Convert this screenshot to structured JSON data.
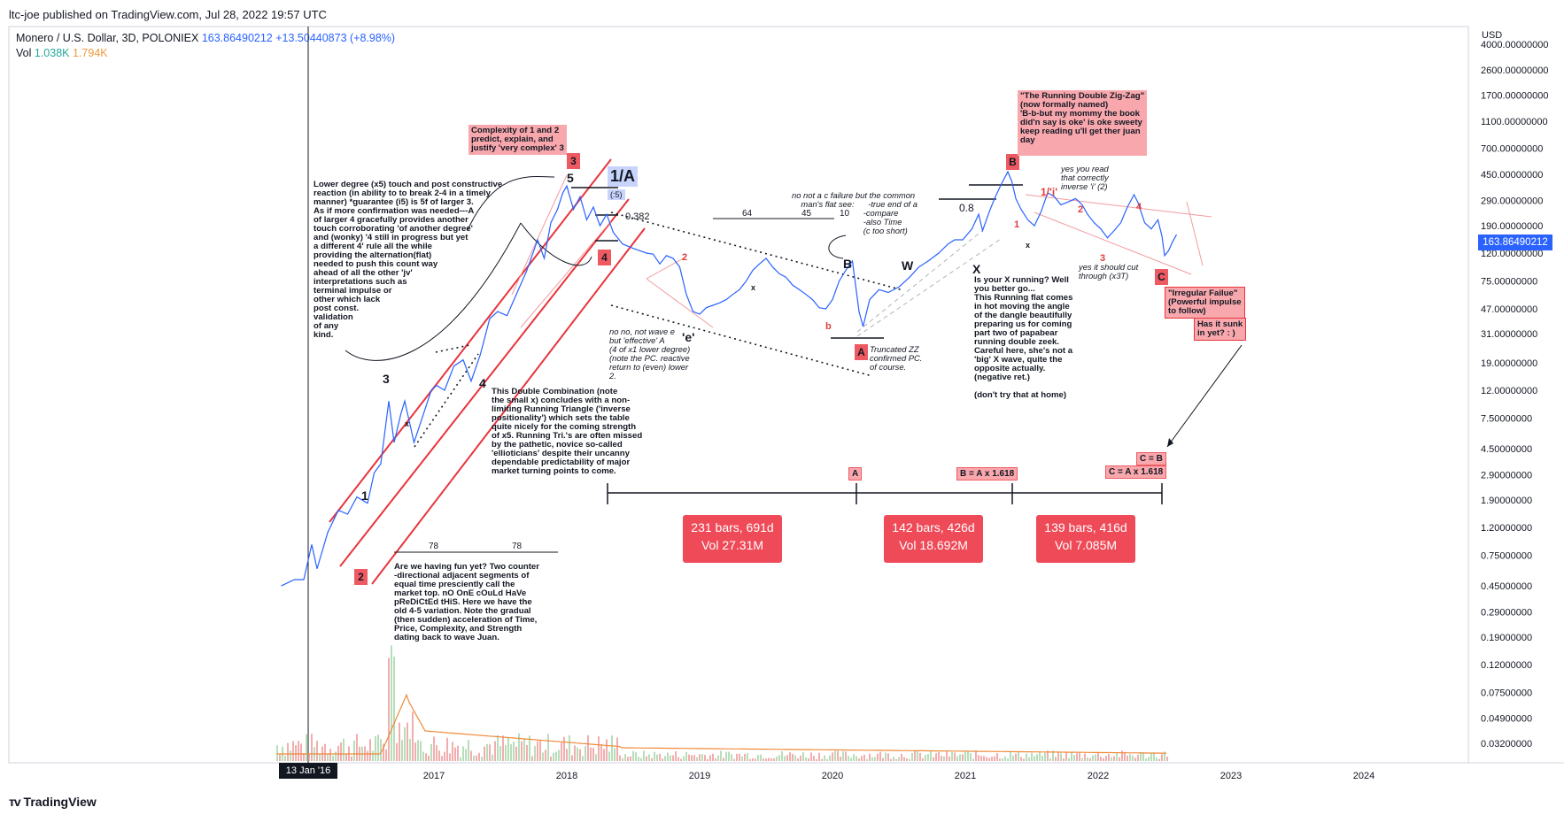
{
  "header": {
    "published": "ltc-joe published on TradingView.com, Jul 28, 2022 19:57 UTC",
    "symbol": "Monero / U.S. Dollar, 3D, POLONIEX",
    "last": "163.86490212",
    "change": "+13.50440873 (+8.98%)",
    "vol_label": "Vol",
    "vol_a": "1.038K",
    "vol_b": "1.794K"
  },
  "axis": {
    "currency": "USD",
    "current_price": "163.86490212",
    "crosshair_date": "13 Jan '16"
  },
  "footer": {
    "brand": "TradingView"
  },
  "colors": {
    "price_line": "#2962ff",
    "annotation_red": "#e8343c",
    "label_pink": "#f8a8ad",
    "volume_up": "#a5d6a7",
    "volume_down": "#ef9a9a",
    "volume_ma": "#ef8a3a"
  },
  "chart_data": {
    "type": "line",
    "scale": "log",
    "ylim": [
      0.032,
      4000
    ],
    "y_ticks": [
      "4000.00000000",
      "2600.00000000",
      "1700.00000000",
      "1100.00000000",
      "700.00000000",
      "450.00000000",
      "290.00000000",
      "190.00000000",
      "120.00000000",
      "75.00000000",
      "47.00000000",
      "31.00000000",
      "19.00000000",
      "12.00000000",
      "7.50000000",
      "4.50000000",
      "2.90000000",
      "1.90000000",
      "1.20000000",
      "0.75000000",
      "0.45000000",
      "0.29000000",
      "0.19000000",
      "0.12000000",
      "0.07500000",
      "0.04900000",
      "0.03200000"
    ],
    "y_tick_values": [
      4000,
      2600,
      1700,
      1100,
      700,
      450,
      290,
      190,
      120,
      75,
      47,
      31,
      19,
      12,
      7.5,
      4.5,
      2.9,
      1.9,
      1.2,
      0.75,
      0.45,
      0.29,
      0.19,
      0.12,
      0.075,
      0.049,
      0.032
    ],
    "x_ticks": [
      "2017",
      "2018",
      "2019",
      "2020",
      "2021",
      "2022",
      "2023",
      "2024"
    ],
    "x_tick_years": [
      2017,
      2018,
      2019,
      2020,
      2021,
      2022,
      2023,
      2024
    ],
    "series": [
      {
        "values": [
          [
            2015.85,
            0.45
          ],
          [
            2015.95,
            0.5
          ],
          [
            2016.02,
            0.5
          ],
          [
            2016.08,
            0.9
          ],
          [
            2016.12,
            0.6
          ],
          [
            2016.2,
            1.1
          ],
          [
            2016.28,
            1.6
          ],
          [
            2016.35,
            1.5
          ],
          [
            2016.42,
            2.0
          ],
          [
            2016.5,
            1.8
          ],
          [
            2016.55,
            3.0
          ],
          [
            2016.6,
            3.5
          ],
          [
            2016.66,
            10.0
          ],
          [
            2016.7,
            5.0
          ],
          [
            2016.75,
            8.0
          ],
          [
            2016.78,
            10.0
          ],
          [
            2016.85,
            5.0
          ],
          [
            2016.92,
            8.0
          ],
          [
            2016.98,
            12.0
          ],
          [
            2017.02,
            13.0
          ],
          [
            2017.08,
            12.0
          ],
          [
            2017.15,
            18.0
          ],
          [
            2017.22,
            20.0
          ],
          [
            2017.28,
            14.0
          ],
          [
            2017.35,
            22.0
          ],
          [
            2017.42,
            40.0
          ],
          [
            2017.48,
            45.0
          ],
          [
            2017.55,
            42.0
          ],
          [
            2017.62,
            60.0
          ],
          [
            2017.7,
            90.0
          ],
          [
            2017.78,
            150.0
          ],
          [
            2017.83,
            110.0
          ],
          [
            2017.88,
            200.0
          ],
          [
            2017.93,
            250.0
          ],
          [
            2017.97,
            330.0
          ],
          [
            2018.0,
            370.0
          ],
          [
            2018.05,
            250.0
          ],
          [
            2018.1,
            310.0
          ],
          [
            2018.15,
            210.0
          ],
          [
            2018.2,
            260.0
          ],
          [
            2018.25,
            190.0
          ],
          [
            2018.3,
            230.0
          ],
          [
            2018.35,
            170.0
          ],
          [
            2018.42,
            140.0
          ],
          [
            2018.5,
            130.0
          ],
          [
            2018.55,
            125.0
          ],
          [
            2018.6,
            120.0
          ],
          [
            2018.65,
            118.0
          ],
          [
            2018.7,
            100.0
          ],
          [
            2018.75,
            115.0
          ],
          [
            2018.8,
            110.0
          ],
          [
            2018.85,
            95.0
          ],
          [
            2018.9,
            60.0
          ],
          [
            2018.95,
            45.0
          ],
          [
            2019.0,
            43.0
          ],
          [
            2019.05,
            48.0
          ],
          [
            2019.1,
            50.0
          ],
          [
            2019.15,
            52.0
          ],
          [
            2019.2,
            55.0
          ],
          [
            2019.25,
            60.0
          ],
          [
            2019.3,
            65.0
          ],
          [
            2019.35,
            75.0
          ],
          [
            2019.4,
            90.0
          ],
          [
            2019.45,
            100.0
          ],
          [
            2019.5,
            110.0
          ],
          [
            2019.55,
            95.0
          ],
          [
            2019.6,
            85.0
          ],
          [
            2019.65,
            80.0
          ],
          [
            2019.7,
            70.0
          ],
          [
            2019.75,
            65.0
          ],
          [
            2019.8,
            60.0
          ],
          [
            2019.85,
            55.0
          ],
          [
            2019.9,
            48.0
          ],
          [
            2019.95,
            47.0
          ],
          [
            2020.0,
            55.0
          ],
          [
            2020.05,
            75.0
          ],
          [
            2020.1,
            90.0
          ],
          [
            2020.15,
            105.0
          ],
          [
            2020.2,
            45.0
          ],
          [
            2020.23,
            35.0
          ],
          [
            2020.28,
            55.0
          ],
          [
            2020.35,
            65.0
          ],
          [
            2020.42,
            62.0
          ],
          [
            2020.5,
            68.0
          ],
          [
            2020.58,
            80.0
          ],
          [
            2020.65,
            95.0
          ],
          [
            2020.72,
            105.0
          ],
          [
            2020.8,
            120.0
          ],
          [
            2020.87,
            140.0
          ],
          [
            2020.92,
            150.0
          ],
          [
            2020.98,
            150.0
          ],
          [
            2021.05,
            180.0
          ],
          [
            2021.1,
            230.0
          ],
          [
            2021.13,
            175.0
          ],
          [
            2021.18,
            240.0
          ],
          [
            2021.22,
            300.0
          ],
          [
            2021.27,
            380.0
          ],
          [
            2021.32,
            470.0
          ],
          [
            2021.35,
            400.0
          ],
          [
            2021.38,
            300.0
          ],
          [
            2021.42,
            250.0
          ],
          [
            2021.47,
            210.0
          ],
          [
            2021.52,
            190.0
          ],
          [
            2021.57,
            240.0
          ],
          [
            2021.62,
            330.0
          ],
          [
            2021.67,
            310.0
          ],
          [
            2021.72,
            270.0
          ],
          [
            2021.78,
            285.0
          ],
          [
            2021.83,
            300.0
          ],
          [
            2021.88,
            270.0
          ],
          [
            2021.92,
            230.0
          ],
          [
            2021.97,
            200.0
          ],
          [
            2022.02,
            180.0
          ],
          [
            2022.07,
            155.0
          ],
          [
            2022.12,
            175.0
          ],
          [
            2022.17,
            200.0
          ],
          [
            2022.22,
            260.0
          ],
          [
            2022.27,
            320.0
          ],
          [
            2022.3,
            280.0
          ],
          [
            2022.35,
            200.0
          ],
          [
            2022.4,
            180.0
          ],
          [
            2022.45,
            210.0
          ],
          [
            2022.48,
            160.0
          ],
          [
            2022.5,
            115.0
          ],
          [
            2022.53,
            125.0
          ],
          [
            2022.56,
            145.0
          ],
          [
            2022.59,
            163.86
          ]
        ]
      }
    ],
    "annotations": {
      "wave_labels": [
        "1",
        "2",
        "3",
        "4",
        "5",
        "1/A",
        "(:5)",
        "0.382",
        "'e'",
        "B",
        "W",
        "X",
        "0.8",
        "2",
        "b",
        "x",
        "1/'i'",
        "1",
        "2",
        "3",
        "4",
        "x",
        "x",
        "A",
        "B",
        "C"
      ],
      "fib_labels": [
        "A",
        "B = A x 1.618",
        "C = B",
        "C = A x 1.618"
      ],
      "time_counts": [
        "64",
        "45",
        "10",
        "78",
        "78"
      ],
      "segments": [
        {
          "label": "231 bars, 691d",
          "volume": "Vol 27.31M"
        },
        {
          "label": "142 bars, 426d",
          "volume": "Vol 18.692M"
        },
        {
          "label": "139 bars, 416d",
          "volume": "Vol 7.085M"
        }
      ],
      "notes": {
        "complexity": "Complexity of 1 and 2\npredict, explain, and\njustify 'very complex' 3",
        "lower_degree": "Lower degree (x5) touch and post constructive\nreaction (in ability to to break 2-4 in a timely\nmanner) *guarantee (i5) is 5f of larger 3.\nAs if more confirmation was needed---A\nof larger 4 gracefully provides another\ntouch corroborating 'of another degree'\nand (wonky) '4 still in progress but yet\na different 4' rule all the while\nproviding the alternation(flat)\nneeded to push this count way\nahead of all the other 'jv'\ninterpretations such as\nterminal impulse or\nother which lack\npost const.\nvalidation\nof any\nkind.",
        "double_combination": "This Double Combination (note\nthe small x) concludes with a non-\nlimiting Running Triangle ('inverse\npositionality') which sets the table\nquite nicely for the coming strength\nof x5. Running Tri.'s are often missed\nby the pathetic, novice so-called\n'ellioticians' despite their uncanny\ndependable predictability of major\nmarket turning points to come.",
        "fun": "Are we having fun yet? Two counter\n-directional adjacent segments of\nequal time presciently call the\nmarket top. nO OnE cOuLd HaVe\npReDiCtEd tHiS. Here we have the\nold 4-5 variation. Note the gradual\n(then sudden) acceleration of Time,\nPrice, Complexity, and Strength\ndating back to wave Juan.",
        "no_wave_e": "no no, not wave e\nbut 'effective' A\n(4 of x1 lower degree)\n(note the PC. reactive\nreturn to (even) lower\n2.",
        "c_failure": "no not a c failure but the common\n    man's flat see:      -true end of a\n                               -compare\n                               -also Time\n                               (c too short)",
        "truncated": "Truncated ZZ\nconfirmed PC.\nof course.",
        "x_running": "Is your X running? Well\nyou better go...\nThis Running flat comes\nin hot moving the angle\nof the dangle beautifully\npreparing us for coming\npart two of papabear\nrunning double zeek.\nCareful here, she's not a\n'big' X wave, quite the\nopposite actually.\n(negative ret.)\n\n(don't try that at home)",
        "running_zz": "\"The Running Double Zig-Zag\"\n(now formally named)\n'B-b-but my mommy the book\ndid'n say is oke' is oke sweety\nkeep reading u'll get ther juan\nday",
        "yes_read": "yes you read\nthat correctly\ninverse 'i' (2)",
        "cut_through": "yes it should cut\nthrough (x3T)",
        "irregular": "\"Irregular Failue\"\n(Powerful impulse\nto follow)",
        "sunk": "Has it sunk\nin yet? : )"
      }
    }
  }
}
